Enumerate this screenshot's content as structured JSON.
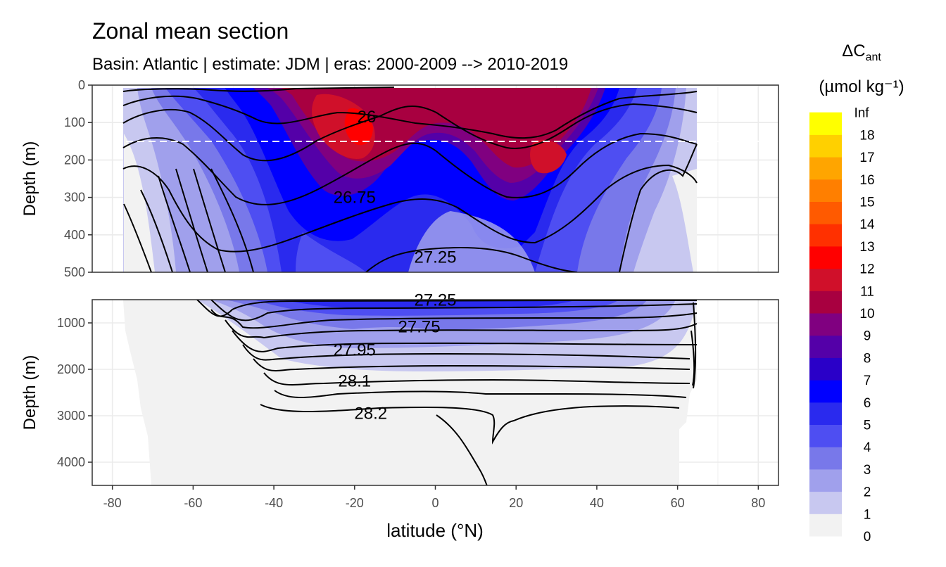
{
  "chart_data": {
    "type": "heatmap",
    "title": "Zonal mean section",
    "subtitle": "Basin: Atlantic | estimate: JDM  | eras: 2000-2009 --> 2010-2019",
    "xlabel": "latitude (°N)",
    "ylabel": "Depth (m)",
    "x_ticks": [
      "-80",
      "-60",
      "-40",
      "-20",
      "0",
      "20",
      "40",
      "60",
      "80"
    ],
    "xlim": [
      -85,
      85
    ],
    "panels": [
      {
        "name": "upper",
        "ylim": [
          500,
          0
        ],
        "y_ticks": [
          "0",
          "100",
          "200",
          "300",
          "400",
          "500"
        ],
        "reference_line_depth": 150
      },
      {
        "name": "lower",
        "ylim": [
          4500,
          500
        ],
        "y_ticks": [
          "1000",
          "2000",
          "3000",
          "4000"
        ]
      }
    ],
    "legend": {
      "title_main": "ΔC",
      "title_sub": "ant",
      "unit_label": "(µmol kg⁻¹)",
      "position": "right",
      "bins": [
        {
          "label": "0",
          "color": "#f2f2f2"
        },
        {
          "label": "1",
          "color": "#c8c8f0"
        },
        {
          "label": "2",
          "color": "#a0a0ec"
        },
        {
          "label": "3",
          "color": "#7878ea"
        },
        {
          "label": "4",
          "color": "#4e4ef2"
        },
        {
          "label": "5",
          "color": "#2a2aee"
        },
        {
          "label": "6",
          "color": "#0000ff"
        },
        {
          "label": "7",
          "color": "#2a00c8"
        },
        {
          "label": "8",
          "color": "#5400a8"
        },
        {
          "label": "9",
          "color": "#800080"
        },
        {
          "label": "10",
          "color": "#a80040"
        },
        {
          "label": "11",
          "color": "#d0102a"
        },
        {
          "label": "12",
          "color": "#ff0000"
        },
        {
          "label": "13",
          "color": "#ff3000"
        },
        {
          "label": "14",
          "color": "#ff5a00"
        },
        {
          "label": "15",
          "color": "#ff7f00"
        },
        {
          "label": "16",
          "color": "#ffa500"
        },
        {
          "label": "17",
          "color": "#ffd000"
        },
        {
          "label": "18",
          "color": "#ffff00"
        }
      ],
      "top_label": "Inf"
    },
    "contour_labels": [
      {
        "text": "26",
        "lat": -17,
        "depth": 85
      },
      {
        "text": "26.75",
        "lat": -20,
        "depth": 300
      },
      {
        "text": "27.25",
        "lat": 0,
        "depth": 460
      },
      {
        "text": "27.25",
        "lat": 0,
        "depth": 510
      },
      {
        "text": "27.75",
        "lat": -4,
        "depth": 1080
      },
      {
        "text": "27.95",
        "lat": -20,
        "depth": 1580
      },
      {
        "text": "28.1",
        "lat": -20,
        "depth": 2250
      },
      {
        "text": "28.2",
        "lat": -16,
        "depth": 2950
      }
    ]
  }
}
